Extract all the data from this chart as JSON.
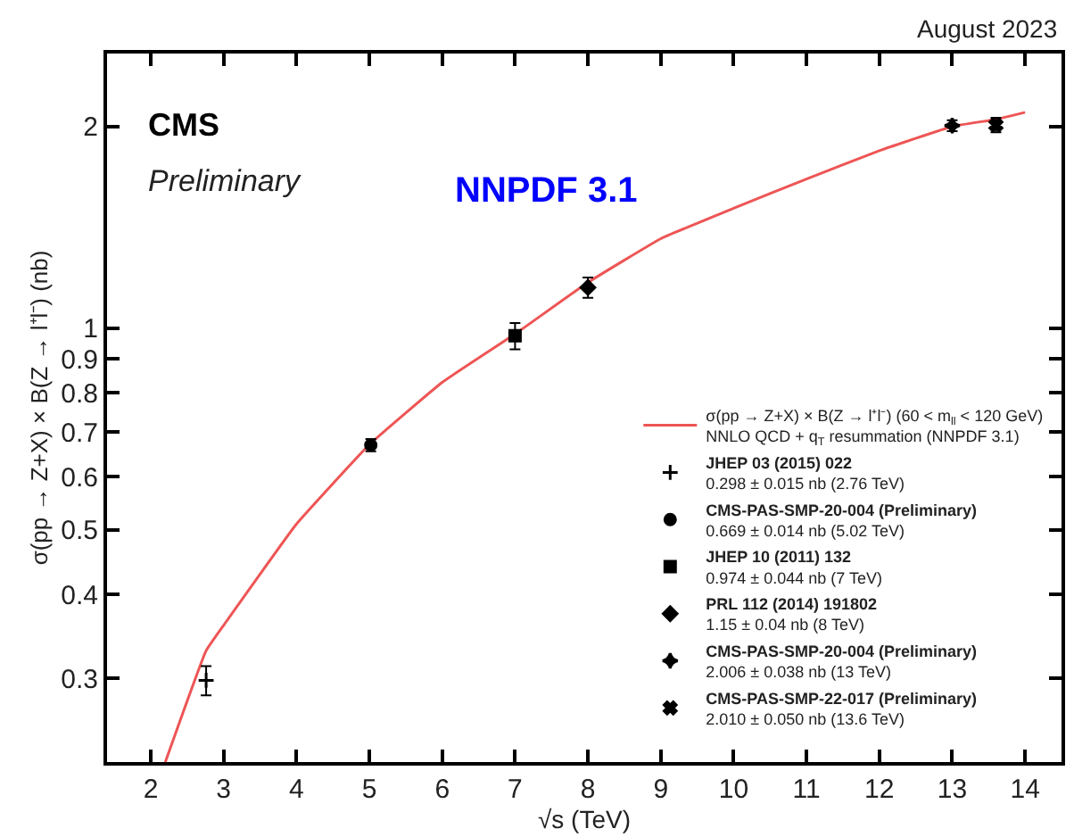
{
  "chart_data": {
    "type": "scatter",
    "ylabel": "σ(pp → Z+X) × B(Z → l⁺l⁻) (nb)",
    "xlabel": "√s (TeV)",
    "annotations": [
      "August 2023",
      "CMS",
      "Preliminary",
      "NNPDF 3.1"
    ],
    "xlim": [
      1.4,
      14.5
    ],
    "xticks": [
      2,
      3,
      4,
      5,
      6,
      7,
      8,
      9,
      10,
      11,
      12,
      13,
      14
    ],
    "ylim": [
      0.225,
      2.57
    ],
    "yticks": [
      0.3,
      0.4,
      0.5,
      0.6,
      0.7,
      0.8,
      0.9,
      1,
      2
    ],
    "log": "y",
    "legend": "bottom right",
    "series": [
      {
        "type": "line",
        "name": "σ(pp → Z+X) × B(Z → l⁺l⁻) (60 < m$_{ll}$ < 120 GeV)\nNNLO QCD + q$_{T}$ resummation (NNPDF 3.1)",
        "color": "#ee5555",
        "marker": "none",
        "line_style": "solid",
        "x": [
          2.2,
          2.76,
          3,
          4,
          5,
          6,
          7,
          8,
          9,
          10,
          11,
          12,
          13,
          13.6,
          14
        ],
        "values": [
          0.225,
          0.33,
          0.36,
          0.51,
          0.67,
          0.83,
          0.98,
          1.17,
          1.36,
          1.51,
          1.67,
          1.84,
          2.0,
          2.05,
          2.1
        ]
      },
      {
        "name": "JHEP 03 (2015) 022\n0.298 ± 0.015 nb (2.76 TeV)",
        "color": "#000000",
        "marker": "cross",
        "x": [
          2.76
        ],
        "values": [
          0.298
        ],
        "errors": [
          0.015
        ]
      },
      {
        "name": "CMS-PAS-SMP-20-004 (Preliminary)\n0.669 ± 0.014 nb (5.02 TeV)",
        "color": "#000000",
        "marker": "circle",
        "x": [
          5.02
        ],
        "values": [
          0.669
        ],
        "errors": [
          0.014
        ]
      },
      {
        "name": "JHEP 10 (2011) 132\n0.974 ± 0.044 nb (7 TeV)",
        "color": "#000000",
        "marker": "square",
        "x": [
          7
        ],
        "values": [
          0.974
        ],
        "errors": [
          0.044
        ]
      },
      {
        "name": "PRL 112 (2014) 191802\n1.15 ± 0.04 nb (8 TeV)",
        "color": "#000000",
        "marker": "diamond",
        "x": [
          8
        ],
        "values": [
          1.15
        ],
        "errors": [
          0.04
        ]
      },
      {
        "name": "CMS-PAS-SMP-20-004 (Preliminary)\n2.006 ± 0.038 nb (13 TeV)",
        "color": "#000000",
        "marker": "star",
        "x": [
          13
        ],
        "values": [
          2.006
        ],
        "errors": [
          0.038
        ]
      },
      {
        "name": "CMS-PAS-SMP-22-017 (Preliminary)\n2.010 ± 0.050 nb (13.6 TeV)",
        "color": "#000000",
        "marker": "x",
        "x": [
          13.6
        ],
        "values": [
          2.01
        ],
        "errors": [
          0.05
        ]
      }
    ]
  }
}
